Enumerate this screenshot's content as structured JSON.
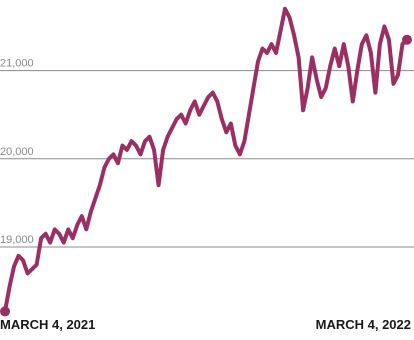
{
  "chart_data": {
    "type": "line",
    "title": "",
    "xlabel": "",
    "ylabel": "",
    "x_labels": [
      "MARCH 4, 2021",
      "MARCH 4, 2022"
    ],
    "x_range": [
      "2021-03-04",
      "2022-03-04"
    ],
    "y_ticks": [
      "19,000",
      "20,000",
      "21,000"
    ],
    "ylim": [
      18150,
      21800
    ],
    "grid": true,
    "line_color": "#9b2f64",
    "series": [
      {
        "values": [
          18270,
          18550,
          18780,
          18900,
          18850,
          18700,
          18750,
          18800,
          19100,
          19150,
          19050,
          19200,
          19150,
          19050,
          19200,
          19100,
          19250,
          19350,
          19200,
          19400,
          19550,
          19700,
          19900,
          20000,
          20050,
          19950,
          20150,
          20100,
          20200,
          20150,
          20050,
          20200,
          20250,
          20100,
          19700,
          20100,
          20250,
          20350,
          20450,
          20500,
          20400,
          20550,
          20650,
          20500,
          20600,
          20700,
          20750,
          20650,
          20450,
          20300,
          20400,
          20150,
          20050,
          20200,
          20500,
          20800,
          21100,
          21250,
          21200,
          21300,
          21200,
          21450,
          21700,
          21600,
          21400,
          21150,
          20550,
          20800,
          21150,
          20900,
          20700,
          20800,
          21050,
          21250,
          21050,
          21300,
          21050,
          20650,
          21000,
          21300,
          21400,
          21200,
          20750,
          21300,
          21500,
          21350,
          20850,
          20950,
          21300,
          21350
        ]
      }
    ]
  }
}
